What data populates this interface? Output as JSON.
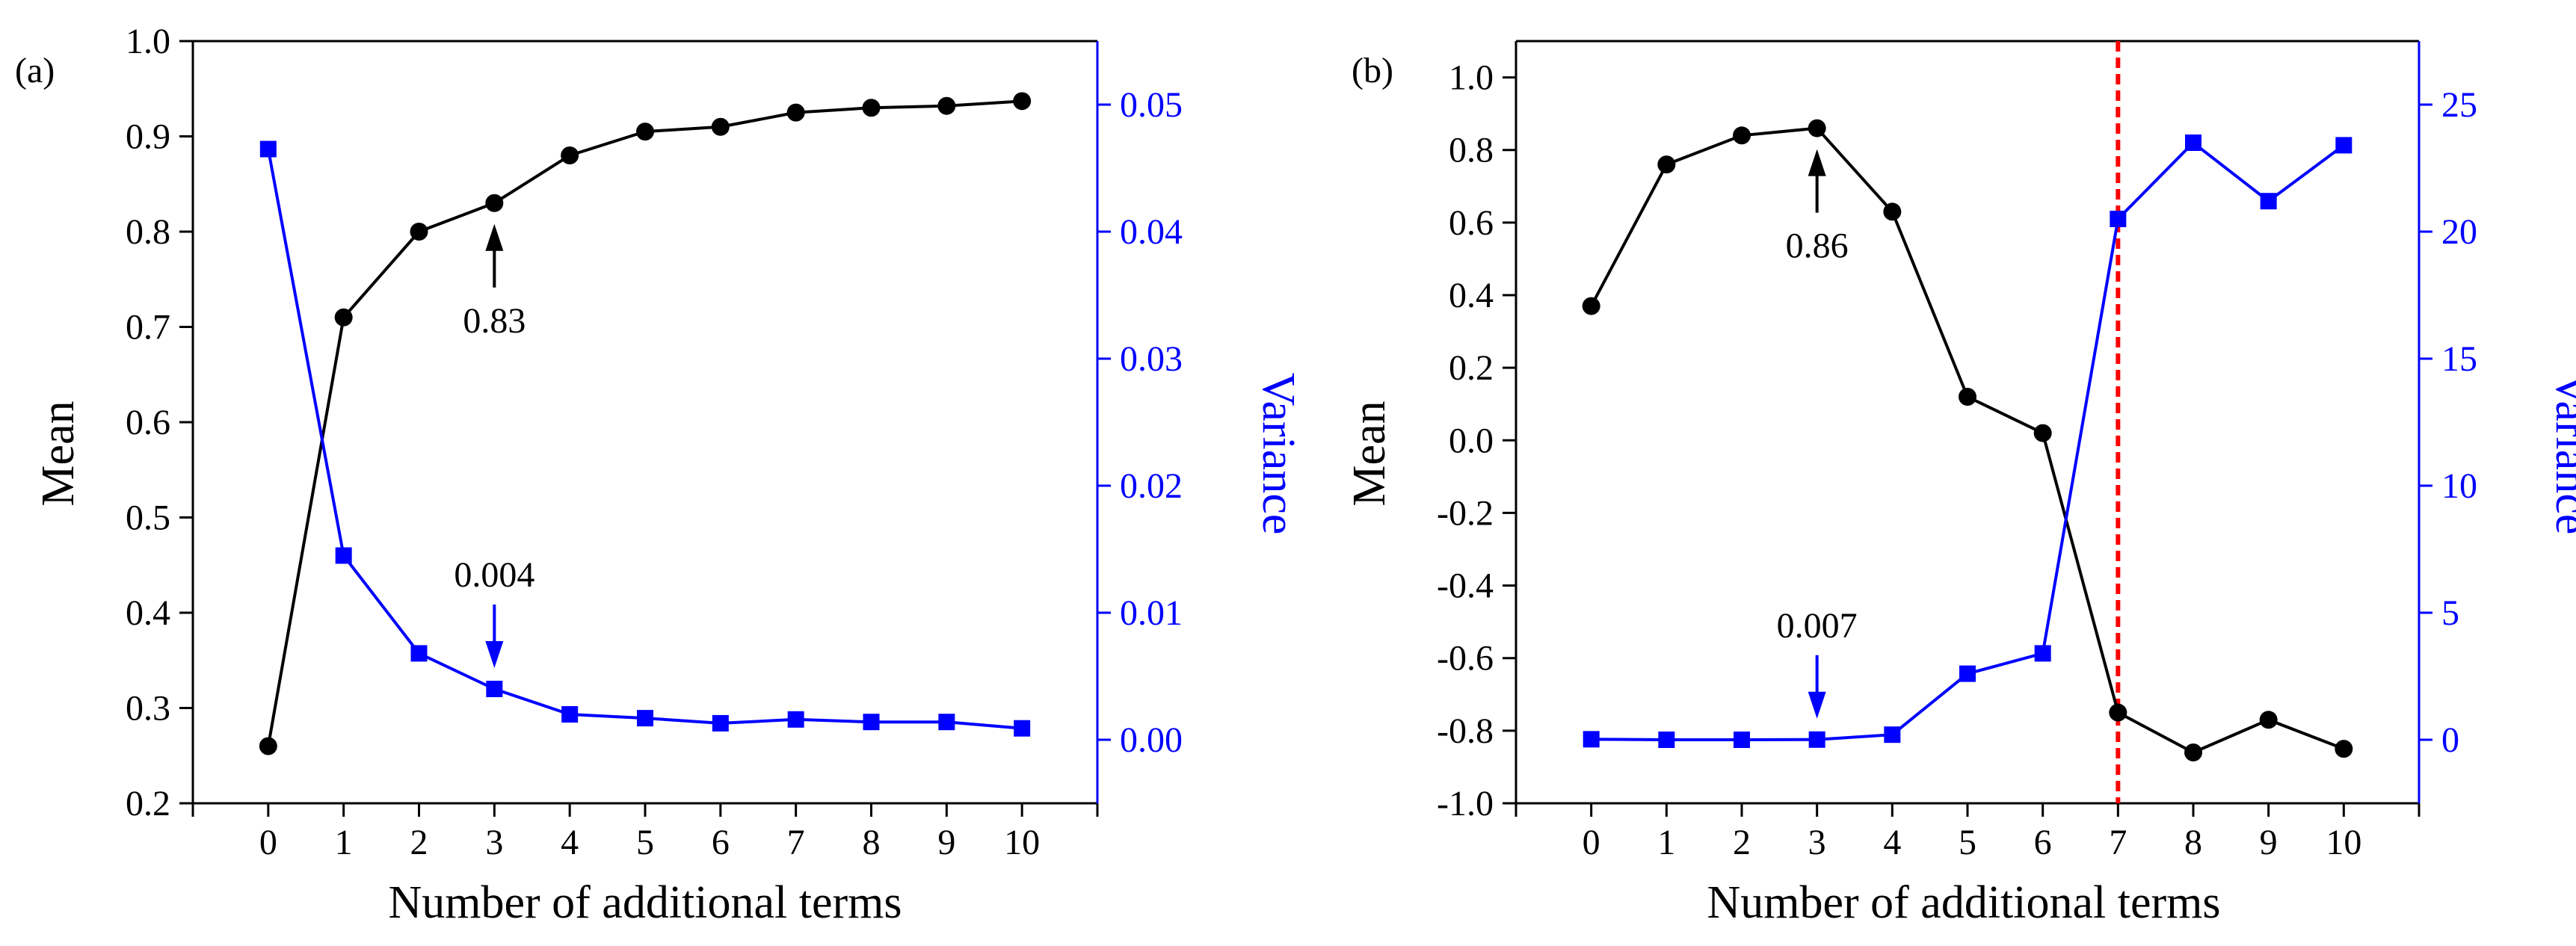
{
  "chart_data": [
    {
      "panel_label": "(a)",
      "type": "line",
      "xlabel": "Number of additional terms",
      "ylabel_left": "Mean",
      "ylabel_right": "Variance",
      "x": [
        0,
        1,
        2,
        3,
        4,
        5,
        6,
        7,
        8,
        9,
        10
      ],
      "xlim": [
        -1,
        11
      ],
      "left_axis": {
        "ylim": [
          0.2,
          1.0
        ],
        "ticks": [
          "0.2",
          "0.3",
          "0.4",
          "0.5",
          "0.6",
          "0.7",
          "0.8",
          "0.9",
          "1.0"
        ]
      },
      "right_axis": {
        "ylim": [
          -0.005,
          0.055
        ],
        "ticks": [
          "0.00",
          "0.01",
          "0.02",
          "0.03",
          "0.04",
          "0.05"
        ],
        "color": "#0000ff"
      },
      "series": [
        {
          "name": "Mean",
          "axis": "left",
          "color": "#000000",
          "marker": "circle",
          "values": [
            0.26,
            0.71,
            0.8,
            0.83,
            0.88,
            0.905,
            0.91,
            0.925,
            0.93,
            0.932,
            0.937
          ]
        },
        {
          "name": "Variance",
          "axis": "right",
          "color": "#0000ff",
          "marker": "square",
          "values": [
            0.0465,
            0.0145,
            0.0068,
            0.004,
            0.002,
            0.0017,
            0.0013,
            0.0016,
            0.0014,
            0.0014,
            0.0009
          ]
        }
      ],
      "annotations": [
        {
          "text": "0.83",
          "x": 3,
          "axis": "left",
          "value": 0.83,
          "color": "#000000",
          "arrow": "up"
        },
        {
          "text": "0.004",
          "x": 3,
          "axis": "right",
          "value": 0.004,
          "color": "#0000ff",
          "arrow": "down"
        }
      ]
    },
    {
      "panel_label": "(b)",
      "type": "line",
      "xlabel": "Number of additional terms",
      "ylabel_left": "Mean",
      "ylabel_right": "Variance",
      "x": [
        0,
        1,
        2,
        3,
        4,
        5,
        6,
        7,
        8,
        9,
        10
      ],
      "xlim": [
        -1,
        11
      ],
      "left_axis": {
        "ylim": [
          -1.0,
          1.1
        ],
        "ticks": [
          "-1.0",
          "-0.8",
          "-0.6",
          "-0.4",
          "-0.2",
          "0.0",
          "0.2",
          "0.4",
          "0.6",
          "0.8",
          "1.0"
        ]
      },
      "right_axis": {
        "ylim": [
          -2.5,
          27.5
        ],
        "ticks": [
          "0",
          "5",
          "10",
          "15",
          "20",
          "25"
        ],
        "color": "#0000ff"
      },
      "series": [
        {
          "name": "Mean",
          "axis": "left",
          "color": "#000000",
          "marker": "circle",
          "values": [
            0.37,
            0.76,
            0.84,
            0.86,
            0.63,
            0.12,
            0.02,
            -0.75,
            -0.86,
            -0.77,
            -0.85
          ]
        },
        {
          "name": "Variance",
          "axis": "right",
          "color": "#0000ff",
          "marker": "square",
          "values": [
            0.02,
            0.0,
            0.0,
            0.007,
            0.2,
            2.6,
            3.4,
            20.5,
            23.5,
            21.2,
            23.4
          ]
        }
      ],
      "annotations": [
        {
          "text": "0.86",
          "x": 3,
          "axis": "left",
          "value": 0.86,
          "color": "#000000",
          "arrow": "up"
        },
        {
          "text": "0.007",
          "x": 3,
          "axis": "right",
          "value": 0.007,
          "color": "#0000ff",
          "arrow": "down"
        }
      ],
      "vline": {
        "x": 7,
        "color": "#ff0000",
        "style": "dotted"
      }
    }
  ]
}
